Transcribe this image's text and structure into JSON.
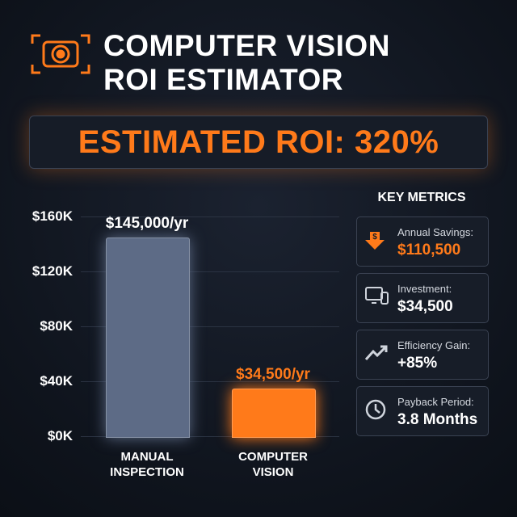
{
  "title_lines": [
    "COMPUTER VISION",
    "ROI ESTIMATOR"
  ],
  "banner": "ESTIMATED ROI: 320%",
  "chart_data": {
    "type": "bar",
    "categories": [
      "MANUAL INSPECTION",
      "COMPUTER VISION"
    ],
    "values": [
      145000,
      34500
    ],
    "value_labels": [
      "$145,000/yr",
      "$34,500/yr"
    ],
    "colors": [
      "#5d6b86",
      "#ff7a1a"
    ],
    "ylim": [
      0,
      160000
    ],
    "yticks": [
      {
        "value": 0,
        "label": "$0K"
      },
      {
        "value": 40000,
        "label": "$40K"
      },
      {
        "value": 80000,
        "label": "$80K"
      },
      {
        "value": 120000,
        "label": "$120K"
      },
      {
        "value": 160000,
        "label": "$160K"
      }
    ],
    "grid": true
  },
  "key_metrics": {
    "title": "KEY METRICS",
    "items": [
      {
        "label": "Annual Savings:",
        "value": "$110,500"
      },
      {
        "label": "Investment:",
        "value": "$34,500"
      },
      {
        "label": "Efficiency Gain:",
        "value": "+85%"
      },
      {
        "label": "Payback Period:",
        "value": "3.8 Months"
      }
    ]
  }
}
